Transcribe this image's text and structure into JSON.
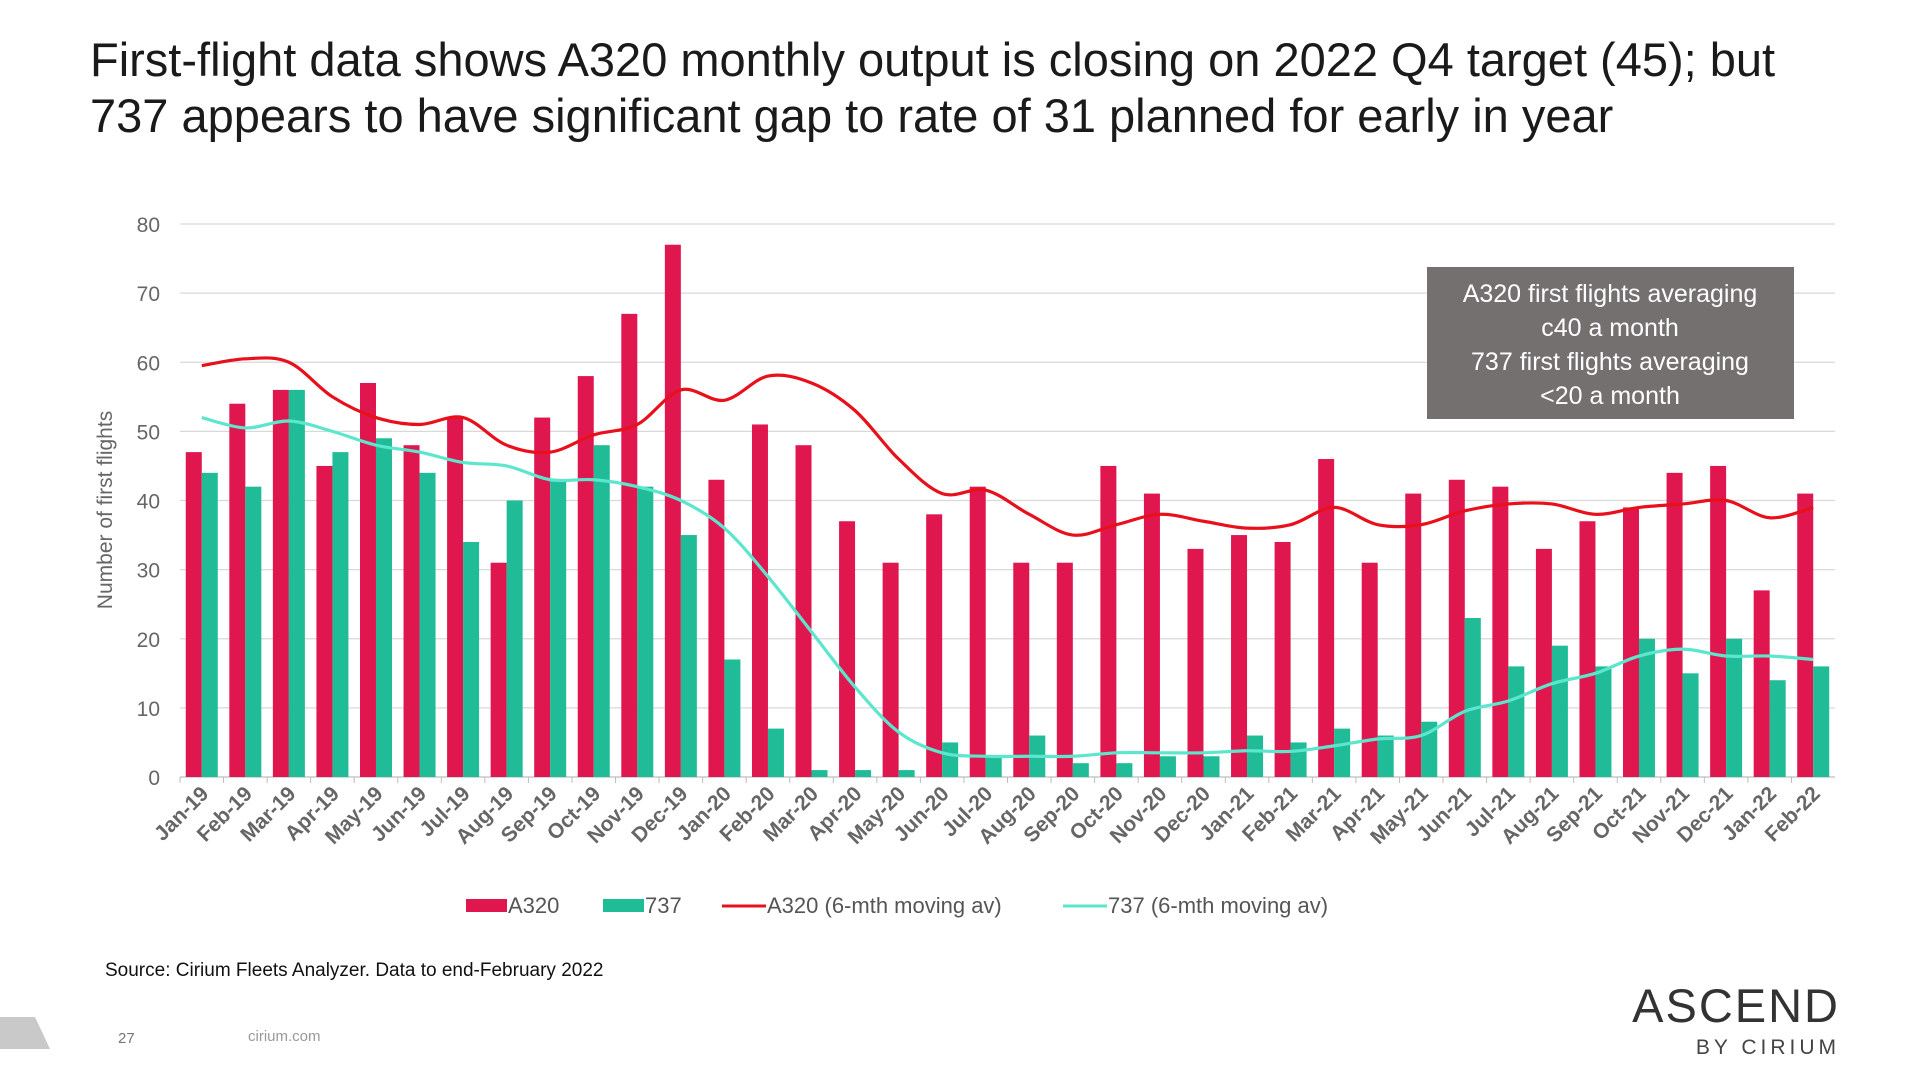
{
  "page": {
    "title": "First-flight data shows A320 monthly output is closing on 2022 Q4 target (45); but 737 appears to have significant gap to rate of 31 planned for early in year",
    "source": "Source: Cirium Fleets Analyzer. Data to end-February 2022",
    "page_number": "27",
    "website": "cirium.com",
    "logo_main": "ASCEND",
    "logo_sub": "BY CIRIUM"
  },
  "chart_data": {
    "type": "bar",
    "categories": [
      "Jan-19",
      "Feb-19",
      "Mar-19",
      "Apr-19",
      "May-19",
      "Jun-19",
      "Jul-19",
      "Aug-19",
      "Sep-19",
      "Oct-19",
      "Nov-19",
      "Dec-19",
      "Jan-20",
      "Feb-20",
      "Mar-20",
      "Apr-20",
      "May-20",
      "Jun-20",
      "Jul-20",
      "Aug-20",
      "Sep-20",
      "Oct-20",
      "Nov-20",
      "Dec-20",
      "Jan-21",
      "Feb-21",
      "Mar-21",
      "Apr-21",
      "May-21",
      "Jun-21",
      "Jul-21",
      "Aug-21",
      "Sep-21",
      "Oct-21",
      "Nov-21",
      "Dec-21",
      "Jan-22",
      "Feb-22"
    ],
    "series": [
      {
        "name": "A320",
        "kind": "bar",
        "color": "#e0174f",
        "values": [
          47,
          54,
          56,
          45,
          57,
          48,
          52,
          31,
          52,
          58,
          67,
          77,
          43,
          51,
          48,
          37,
          31,
          38,
          42,
          31,
          31,
          45,
          41,
          33,
          35,
          34,
          46,
          31,
          41,
          43,
          42,
          33,
          37,
          39,
          44,
          45,
          27,
          41
        ]
      },
      {
        "name": "737",
        "kind": "bar",
        "color": "#1fbc97",
        "values": [
          44,
          42,
          56,
          47,
          49,
          44,
          34,
          40,
          43,
          48,
          42,
          35,
          17,
          7,
          1,
          1,
          1,
          5,
          3,
          6,
          2,
          2,
          3,
          3,
          6,
          5,
          7,
          6,
          8,
          23,
          16,
          19,
          16,
          20,
          15,
          20,
          14,
          16
        ]
      },
      {
        "name": "A320 (6-mth moving av)",
        "kind": "line",
        "color": "#e8101b",
        "values": [
          59.5,
          60.5,
          60,
          55,
          52,
          51,
          52,
          48,
          47,
          49.5,
          51,
          56,
          54.5,
          58,
          57,
          53,
          46,
          41,
          41.5,
          38,
          35,
          36.5,
          38,
          37,
          36,
          36.5,
          39,
          36.5,
          36.5,
          38.5,
          39.5,
          39.5,
          38,
          39,
          39.5,
          40,
          37.5,
          39
        ]
      },
      {
        "name": "737 (6-mth moving av)",
        "kind": "line",
        "color": "#5ce6cd",
        "values": [
          52,
          50.5,
          51.5,
          50,
          48,
          47,
          45.5,
          45,
          43,
          43,
          42,
          40,
          36,
          29,
          21,
          13,
          6.5,
          3.5,
          3,
          3,
          3,
          3.5,
          3.5,
          3.5,
          3.8,
          3.7,
          4.5,
          5.5,
          6,
          9.5,
          11,
          13.5,
          15,
          17.5,
          18.5,
          17.5,
          17.5,
          17
        ]
      }
    ],
    "ylabel": "Number of first flights",
    "xlabel": "",
    "ylim": [
      0,
      80
    ],
    "yticks": [
      0,
      10,
      20,
      30,
      40,
      50,
      60,
      70,
      80
    ],
    "grid": true,
    "legend_position": "bottom",
    "annotation": {
      "lines": [
        "A320 first flights averaging",
        "c40 a month",
        "737 first flights averaging",
        "<20 a month"
      ],
      "bg_color": "#757070"
    }
  }
}
